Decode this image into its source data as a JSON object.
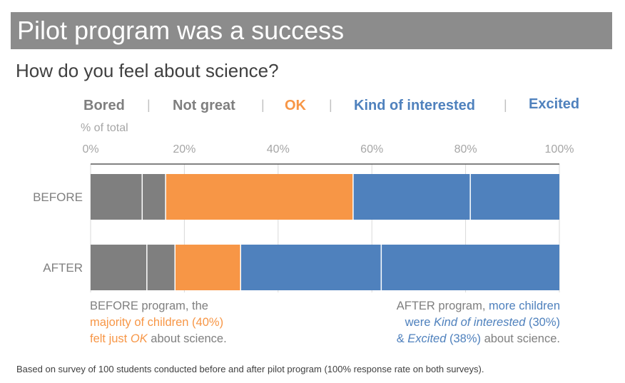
{
  "title": "Pilot program was a success",
  "subtitle": "How do you feel about science?",
  "legend": {
    "bored": "Bored",
    "not_great": "Not great",
    "ok": "OK",
    "kind_of_interested": "Kind of interested",
    "excited": "Excited",
    "separator": "|"
  },
  "colors": {
    "bored": "#7f7f7f",
    "not_great": "#7f7f7f",
    "ok": "#f79646",
    "kind_of_interested": "#4f81bd",
    "excited": "#4f81bd",
    "legend_gray": "#7f7f7f"
  },
  "chart_data": {
    "type": "bar",
    "orientation": "horizontal",
    "stacked": true,
    "xlabel": "% of total",
    "xlim": [
      0,
      100
    ],
    "xticks": [
      "0%",
      "20%",
      "40%",
      "60%",
      "80%",
      "100%"
    ],
    "xtick_values": [
      0,
      20,
      40,
      60,
      80,
      100
    ],
    "categories": [
      "BEFORE",
      "AFTER"
    ],
    "series": [
      {
        "name": "Bored",
        "values": [
          11,
          12
        ]
      },
      {
        "name": "Not great",
        "values": [
          5,
          6
        ]
      },
      {
        "name": "OK",
        "values": [
          40,
          14
        ]
      },
      {
        "name": "Kind of interested",
        "values": [
          25,
          30
        ]
      },
      {
        "name": "Excited",
        "values": [
          19,
          38
        ]
      }
    ],
    "grid": true,
    "legend_position": "top"
  },
  "notes": {
    "before": {
      "line1": "BEFORE program, the",
      "line2": "majority of children (40%)",
      "line3_a": "felt just ",
      "line3_b": "OK",
      "line3_c": " about science."
    },
    "after": {
      "line1_a": "AFTER program, ",
      "line1_b": "more children",
      "line2_a": "were ",
      "line2_b": "Kind of interested",
      "line2_c": " (30%)",
      "line3_a": "& ",
      "line3_b": "Excited",
      "line3_c": " (38%)",
      "line3_d": " about science."
    }
  },
  "footer": "Based on survey of 100 students conducted before and after pilot program (100% response rate on both surveys)."
}
